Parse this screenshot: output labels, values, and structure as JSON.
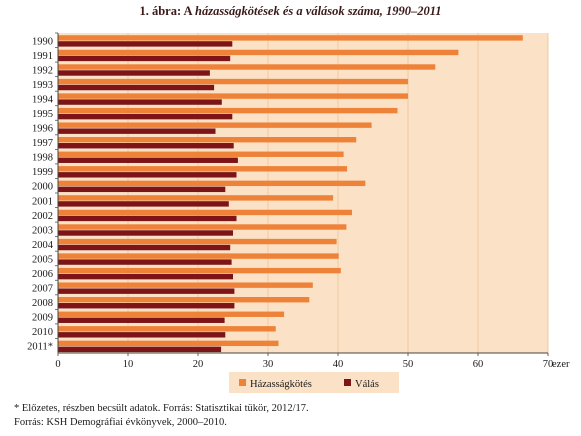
{
  "title": {
    "prefix": "1. ábra: A ",
    "italic": "házasságkötések és a válások száma, 1990–2011"
  },
  "colors": {
    "marriage": "#ee8238",
    "divorce": "#7c1418",
    "plot_background": "#fbe1c6",
    "gridline": "#f2c9a2"
  },
  "chart_data": {
    "type": "bar",
    "orientation": "horizontal",
    "categories": [
      "1990",
      "1991",
      "1992",
      "1993",
      "1994",
      "1995",
      "1996",
      "1997",
      "1998",
      "1999",
      "2000",
      "2001",
      "2002",
      "2003",
      "2004",
      "2005",
      "2006",
      "2007",
      "2008",
      "2009",
      "2010",
      "2011*"
    ],
    "series": [
      {
        "name": "Házasságkötés",
        "values": [
          66.4,
          57.2,
          53.9,
          50.0,
          50.0,
          48.5,
          44.8,
          42.6,
          40.8,
          41.3,
          43.9,
          39.3,
          42.0,
          41.2,
          39.8,
          40.1,
          40.4,
          36.4,
          35.9,
          32.3,
          31.1,
          31.5
        ]
      },
      {
        "name": "Válás",
        "values": [
          24.9,
          24.6,
          21.7,
          22.3,
          23.4,
          24.9,
          22.5,
          25.1,
          25.7,
          25.5,
          23.9,
          24.4,
          25.5,
          25.0,
          24.6,
          24.8,
          25.0,
          25.2,
          25.2,
          23.8,
          23.9,
          23.3
        ]
      }
    ],
    "xlim": [
      0,
      70
    ],
    "xticks": [
      0,
      10,
      20,
      30,
      40,
      50,
      60,
      70
    ],
    "xunit": "ezer",
    "grid": true,
    "legend_position": "bottom-center"
  },
  "footnotes": {
    "note": "* Előzetes, részben becsült adatok. Forrás: Statisztikai tükör, 2012/17.",
    "source": "Forrás: KSH Demográfiai évkönyvek, 2000–2010."
  }
}
